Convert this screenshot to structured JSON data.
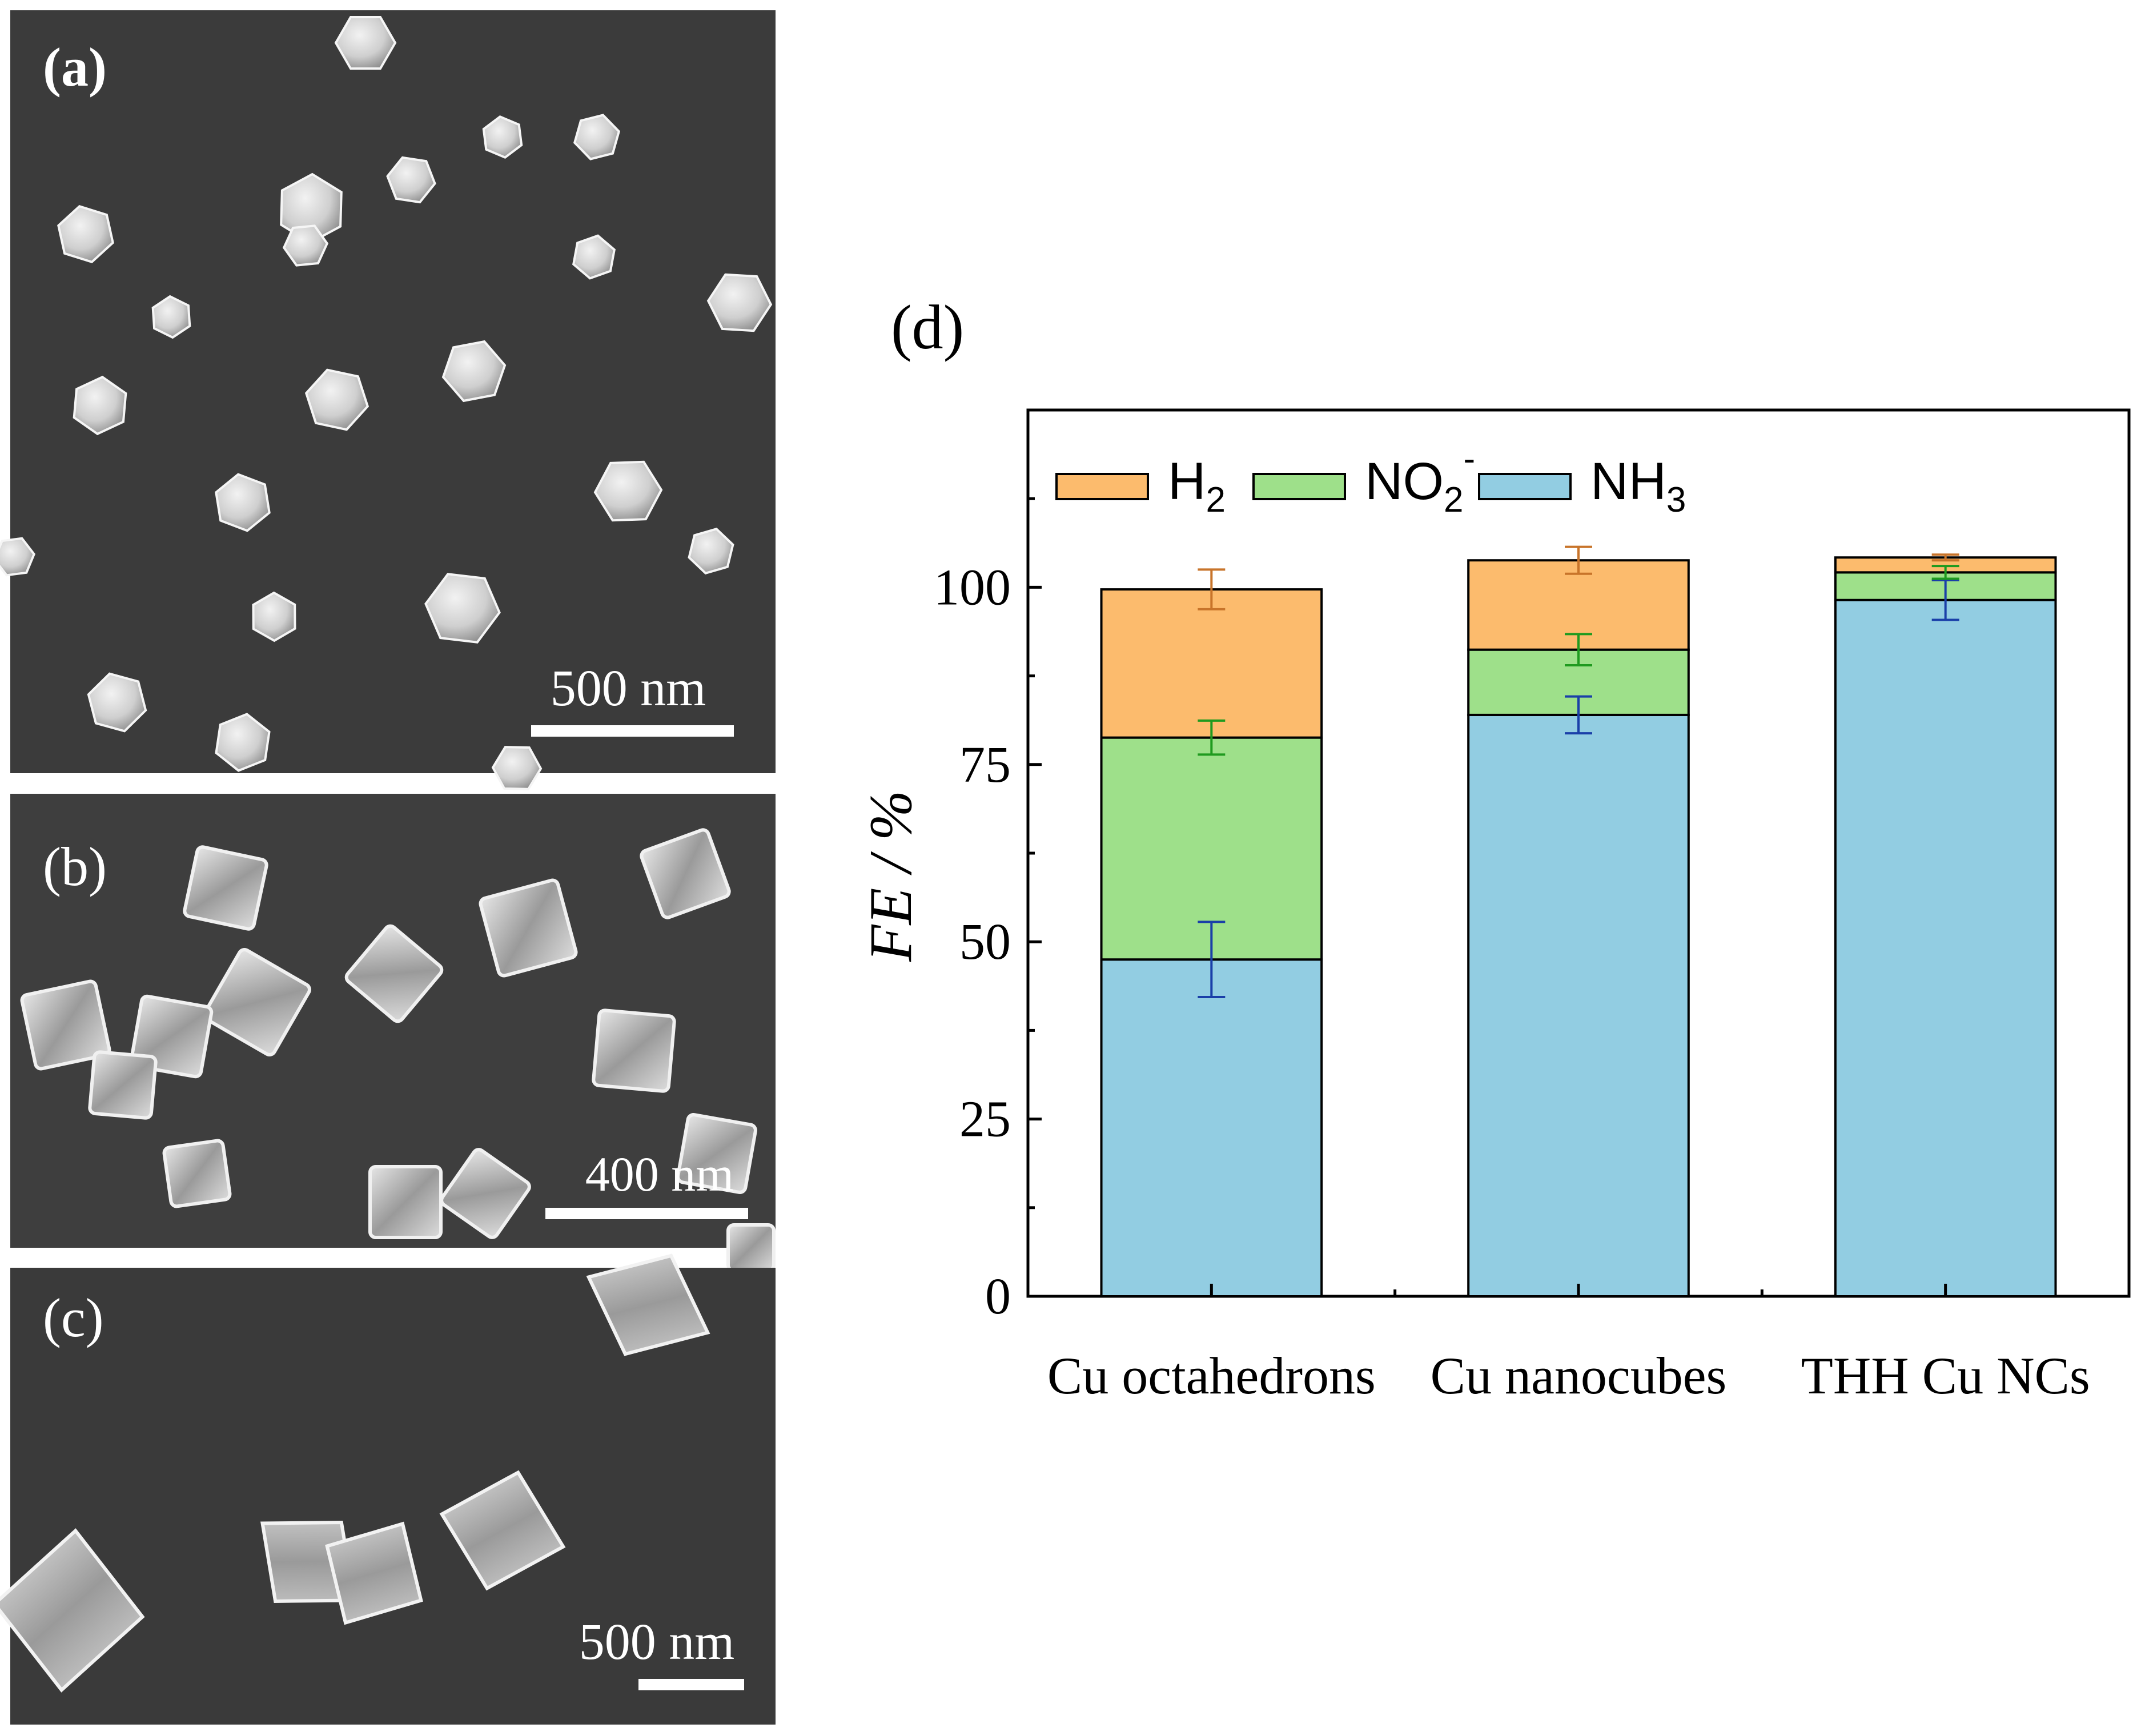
{
  "panels": {
    "a": {
      "label": "(a)",
      "scale_bar": "500 nm"
    },
    "b": {
      "label": "(b)",
      "scale_bar": "400 nm"
    },
    "c": {
      "label": "(c)",
      "scale_bar": "500 nm"
    },
    "d": {
      "label": "(d)"
    }
  },
  "chart_data": {
    "type": "bar",
    "stacked": true,
    "categories": [
      "Cu octahedrons",
      "Cu nanocubes",
      "THH Cu NCs"
    ],
    "series": [
      {
        "name": "NH3",
        "name_main": "NH",
        "name_sub": "3",
        "values": [
          47.5,
          82.0,
          98.2
        ],
        "errors": [
          5.3,
          2.6,
          2.8
        ],
        "color": "#92cde2",
        "error_color": "#1a3fa8"
      },
      {
        "name": "NO2-",
        "name_main": "NO",
        "name_sub": "2",
        "name_sup": "-",
        "values": [
          31.3,
          9.2,
          3.9
        ],
        "errors": [
          2.4,
          2.2,
          0.9
        ],
        "color": "#9ee08a",
        "error_color": "#1f9a1f"
      },
      {
        "name": "H2",
        "name_main": "H",
        "name_sub": "2",
        "values": [
          20.9,
          12.6,
          2.1
        ],
        "errors": [
          2.8,
          1.9,
          0.4
        ],
        "color": "#fcbb6d",
        "error_color": "#c8742a"
      }
    ],
    "xlabel": "",
    "ylabel": "FE / %",
    "ylim": [
      0,
      125
    ],
    "yticks": [
      0,
      25,
      50,
      75,
      100
    ],
    "legend_position": "top-left",
    "grid": false
  }
}
